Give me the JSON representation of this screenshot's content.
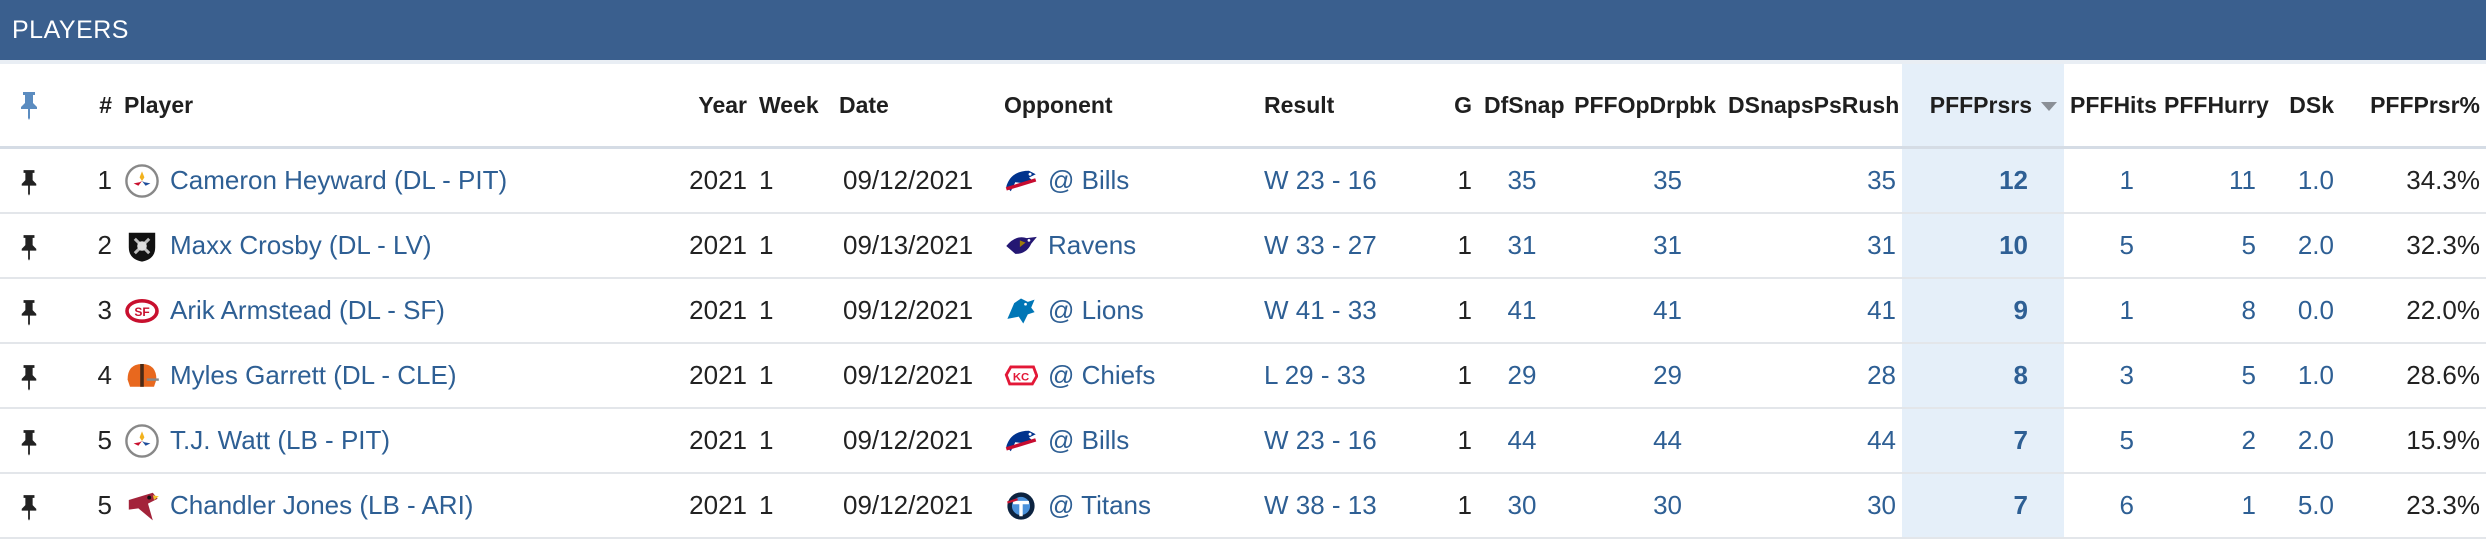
{
  "panel_title": "PLAYERS",
  "columns": {
    "pin": "",
    "rank": "#",
    "player": "Player",
    "year": "Year",
    "week": "Week",
    "date": "Date",
    "opponent": "Opponent",
    "result": "Result",
    "g": "G",
    "dfsnap": "DfSnap",
    "pffopdrpbk": "PFFOpDrpbk",
    "dsnapspsrush": "DSnapsPsRush",
    "pffprsrs": "PFFPrsrs",
    "pffhits": "PFFHits",
    "pffhurry": "PFFHurry",
    "dsk": "DSk",
    "pffprsr_pct": "PFFPrsr%"
  },
  "sort": {
    "column": "PFFPrsrs",
    "direction": "descending"
  },
  "colors": {
    "header_bg": "#3a5f8e",
    "link": "#2e5f94",
    "sorted_bg": "#e5eff9"
  },
  "rows": [
    {
      "rank": "1",
      "player": "Cameron Heyward (DL - PIT)",
      "team_logo": "steelers-logo-icon",
      "year": "2021",
      "week": "1",
      "date": "09/12/2021",
      "opp_logo": "bills-logo-icon",
      "opponent": "@ Bills",
      "result": "W 23 - 16",
      "g": "1",
      "dfsnap": "35",
      "pffopdrpbk": "35",
      "dsnapspsrush": "35",
      "pffprsrs": "12",
      "pffhits": "1",
      "pffhurry": "11",
      "dsk": "1.0",
      "pffprsr_pct": "34.3%"
    },
    {
      "rank": "2",
      "player": "Maxx Crosby (DL - LV)",
      "team_logo": "raiders-logo-icon",
      "year": "2021",
      "week": "1",
      "date": "09/13/2021",
      "opp_logo": "ravens-logo-icon",
      "opponent": "Ravens",
      "result": "W 33 - 27",
      "g": "1",
      "dfsnap": "31",
      "pffopdrpbk": "31",
      "dsnapspsrush": "31",
      "pffprsrs": "10",
      "pffhits": "5",
      "pffhurry": "5",
      "dsk": "2.0",
      "pffprsr_pct": "32.3%"
    },
    {
      "rank": "3",
      "player": "Arik Armstead (DL - SF)",
      "team_logo": "49ers-logo-icon",
      "year": "2021",
      "week": "1",
      "date": "09/12/2021",
      "opp_logo": "lions-logo-icon",
      "opponent": "@ Lions",
      "result": "W 41 - 33",
      "g": "1",
      "dfsnap": "41",
      "pffopdrpbk": "41",
      "dsnapspsrush": "41",
      "pffprsrs": "9",
      "pffhits": "1",
      "pffhurry": "8",
      "dsk": "0.0",
      "pffprsr_pct": "22.0%"
    },
    {
      "rank": "4",
      "player": "Myles Garrett (DL - CLE)",
      "team_logo": "browns-logo-icon",
      "year": "2021",
      "week": "1",
      "date": "09/12/2021",
      "opp_logo": "chiefs-logo-icon",
      "opponent": "@ Chiefs",
      "result": "L 29 - 33",
      "g": "1",
      "dfsnap": "29",
      "pffopdrpbk": "29",
      "dsnapspsrush": "28",
      "pffprsrs": "8",
      "pffhits": "3",
      "pffhurry": "5",
      "dsk": "1.0",
      "pffprsr_pct": "28.6%"
    },
    {
      "rank": "5",
      "player": "T.J. Watt (LB - PIT)",
      "team_logo": "steelers-logo-icon",
      "year": "2021",
      "week": "1",
      "date": "09/12/2021",
      "opp_logo": "bills-logo-icon",
      "opponent": "@ Bills",
      "result": "W 23 - 16",
      "g": "1",
      "dfsnap": "44",
      "pffopdrpbk": "44",
      "dsnapspsrush": "44",
      "pffprsrs": "7",
      "pffhits": "5",
      "pffhurry": "2",
      "dsk": "2.0",
      "pffprsr_pct": "15.9%"
    },
    {
      "rank": "5",
      "player": "Chandler Jones (LB - ARI)",
      "team_logo": "cardinals-logo-icon",
      "year": "2021",
      "week": "1",
      "date": "09/12/2021",
      "opp_logo": "titans-logo-icon",
      "opponent": "@ Titans",
      "result": "W 38 - 13",
      "g": "1",
      "dfsnap": "30",
      "pffopdrpbk": "30",
      "dsnapspsrush": "30",
      "pffprsrs": "7",
      "pffhits": "6",
      "pffhurry": "1",
      "dsk": "5.0",
      "pffprsr_pct": "23.3%"
    }
  ]
}
